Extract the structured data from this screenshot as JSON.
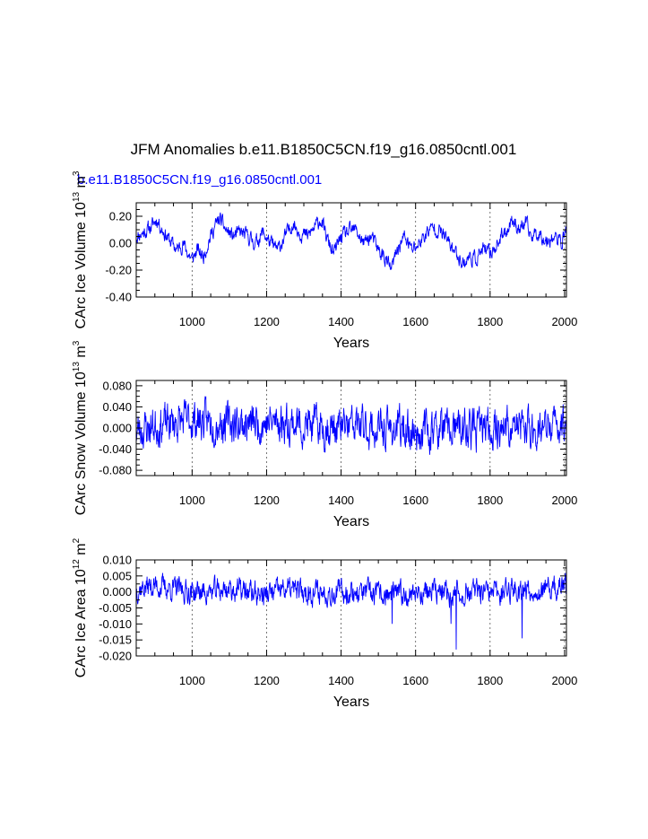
{
  "figure": {
    "title": "JFM Anomalies b.e11.B1850C5CN.f19_g16.0850cntl.001",
    "case_label": "b.e11.B1850C5CN.f19_g16.0850cntl.001",
    "case_label_color": "#0000ff",
    "line_color": "#0000ff"
  },
  "chart_data": [
    {
      "type": "line",
      "title": "",
      "xlabel": "Years",
      "ylabel_main": "CArc Ice Volume 10",
      "ylabel_exp": "13",
      "ylabel_unit": "m",
      "ylabel_unit_exp": "3",
      "xlim": [
        850,
        2005
      ],
      "ylim": [
        -0.4,
        0.3
      ],
      "xticks": [
        1000,
        1200,
        1400,
        1600,
        1800,
        2000
      ],
      "xtick_labels": [
        "1000",
        "1200",
        "1400",
        "1600",
        "1800",
        "2000"
      ],
      "yticks": [
        -0.4,
        -0.2,
        0.0,
        0.2
      ],
      "ytick_labels": [
        "-0.40",
        "-0.20",
        "0.00",
        "0.20"
      ],
      "gridlines_x": [
        1000,
        1200,
        1400,
        1600,
        1800,
        2000
      ],
      "series": [
        {
          "name": "b.e11.B1850C5CN.f19_g16.0850cntl.001",
          "x": [
            850,
            870,
            890,
            905,
            920,
            940,
            960,
            975,
            990,
            1000,
            1015,
            1030,
            1045,
            1060,
            1075,
            1090,
            1110,
            1130,
            1150,
            1170,
            1190,
            1210,
            1230,
            1250,
            1270,
            1290,
            1310,
            1330,
            1345,
            1360,
            1380,
            1400,
            1420,
            1440,
            1460,
            1480,
            1500,
            1520,
            1535,
            1550,
            1570,
            1590,
            1610,
            1630,
            1650,
            1670,
            1690,
            1710,
            1730,
            1745,
            1760,
            1780,
            1800,
            1820,
            1840,
            1860,
            1880,
            1895,
            1910,
            1930,
            1950,
            1970,
            1990,
            2005
          ],
          "values": [
            0.05,
            0.08,
            0.12,
            0.18,
            0.1,
            0.02,
            -0.05,
            0.0,
            -0.08,
            -0.12,
            -0.05,
            -0.1,
            0.02,
            0.12,
            0.18,
            0.1,
            0.05,
            0.08,
            0.05,
            0.0,
            0.08,
            0.0,
            -0.05,
            0.05,
            0.15,
            0.08,
            0.05,
            0.12,
            0.18,
            0.05,
            -0.08,
            0.05,
            0.08,
            0.1,
            0.0,
            0.05,
            -0.05,
            -0.12,
            -0.2,
            -0.05,
            0.05,
            -0.05,
            0.0,
            0.08,
            0.12,
            0.08,
            0.0,
            -0.08,
            -0.15,
            -0.1,
            -0.12,
            -0.05,
            -0.08,
            0.0,
            0.08,
            0.18,
            0.1,
            0.15,
            0.05,
            0.08,
            0.02,
            0.05,
            0.0,
            0.1
          ]
        }
      ]
    },
    {
      "type": "line",
      "title": "",
      "xlabel": "Years",
      "ylabel_main": "CArc Snow Volume 10",
      "ylabel_exp": "13",
      "ylabel_unit": "m",
      "ylabel_unit_exp": "3",
      "xlim": [
        850,
        2005
      ],
      "ylim": [
        -0.09,
        0.09
      ],
      "xticks": [
        1000,
        1200,
        1400,
        1600,
        1800,
        2000
      ],
      "xtick_labels": [
        "1000",
        "1200",
        "1400",
        "1600",
        "1800",
        "2000"
      ],
      "yticks": [
        -0.08,
        -0.04,
        0.0,
        0.04,
        0.08
      ],
      "ytick_labels": [
        "-0.080",
        "-0.040",
        "0.000",
        "0.040",
        "0.080"
      ],
      "gridlines_x": [
        1000,
        1200,
        1400,
        1600,
        1800,
        2000
      ],
      "series": [
        {
          "name": "b.e11.B1850C5CN.f19_g16.0850cntl.001",
          "x": [
            850,
            900,
            950,
            1000,
            1050,
            1100,
            1150,
            1200,
            1250,
            1300,
            1350,
            1400,
            1450,
            1500,
            1550,
            1600,
            1650,
            1700,
            1750,
            1800,
            1850,
            1900,
            1950,
            2005
          ],
          "values": [
            -0.005,
            0.005,
            0.01,
            0.015,
            0.012,
            0.01,
            0.008,
            0.01,
            0.012,
            0.005,
            0.002,
            0.0,
            0.004,
            -0.005,
            0.0,
            -0.008,
            -0.002,
            -0.005,
            -0.004,
            0.0,
            0.002,
            0.0,
            -0.003,
            0.01
          ]
        }
      ]
    },
    {
      "type": "line",
      "title": "",
      "xlabel": "Years",
      "ylabel_main": "CArc Ice Area 10",
      "ylabel_exp": "12",
      "ylabel_unit": "m",
      "ylabel_unit_exp": "2",
      "xlim": [
        850,
        2005
      ],
      "ylim": [
        -0.02,
        0.01
      ],
      "xticks": [
        1000,
        1200,
        1400,
        1600,
        1800,
        2000
      ],
      "xtick_labels": [
        "1000",
        "1200",
        "1400",
        "1600",
        "1800",
        "2000"
      ],
      "yticks": [
        -0.02,
        -0.015,
        -0.01,
        -0.005,
        0.0,
        0.005,
        0.01
      ],
      "ytick_labels": [
        "-0.020",
        "-0.015",
        "-0.010",
        "-0.005",
        "0.000",
        "0.005",
        "0.010"
      ],
      "gridlines_x": [
        1000,
        1200,
        1400,
        1600,
        1800,
        2000
      ],
      "series": [
        {
          "name": "b.e11.B1850C5CN.f19_g16.0850cntl.001",
          "x": [
            850,
            900,
            950,
            1000,
            1050,
            1100,
            1150,
            1200,
            1250,
            1300,
            1350,
            1400,
            1450,
            1500,
            1550,
            1600,
            1650,
            1700,
            1750,
            1800,
            1850,
            1900,
            1950,
            2005
          ],
          "values": [
            0.001,
            0.002,
            0.001,
            0.0,
            0.0,
            0.001,
            0.0,
            -0.001,
            0.001,
            0.0,
            0.0,
            0.0,
            0.0,
            -0.001,
            -0.001,
            0.0,
            0.0,
            -0.001,
            0.0,
            -0.001,
            0.001,
            0.001,
            0.0,
            0.002
          ],
          "spikes": [
            {
              "x": 1709,
              "value": -0.018
            },
            {
              "x": 1886,
              "value": -0.0145
            },
            {
              "x": 1537,
              "value": -0.01
            },
            {
              "x": 1695,
              "value": -0.01
            }
          ]
        }
      ]
    }
  ]
}
